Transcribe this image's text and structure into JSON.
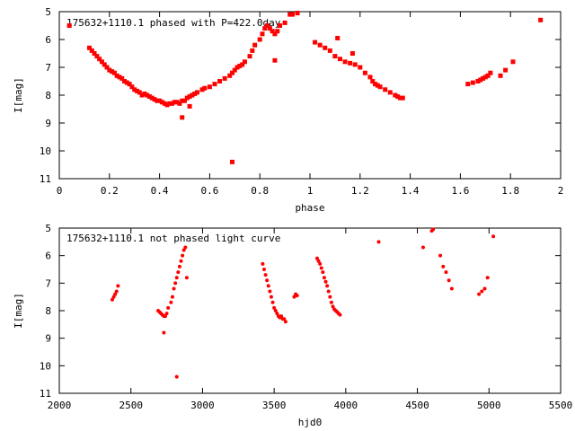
{
  "chart_data": [
    {
      "type": "scatter",
      "title": "175632+1110.1 phased with P=422.0day",
      "xlabel": "phase",
      "ylabel": "I[mag]",
      "xlim": [
        0,
        2
      ],
      "ylim": [
        11,
        5
      ],
      "y_inverted": true,
      "xticks": [
        "0",
        "0.2",
        "0.4",
        "0.6",
        "0.8",
        "1",
        "1.2",
        "1.4",
        "1.6",
        "1.8",
        "2"
      ],
      "yticks": [
        "5",
        "6",
        "7",
        "8",
        "9",
        "10",
        "11"
      ],
      "series": [
        {
          "color": "#ff0000",
          "x": [
            0.04,
            0.12,
            0.13,
            0.14,
            0.15,
            0.16,
            0.17,
            0.18,
            0.19,
            0.2,
            0.21,
            0.22,
            0.23,
            0.24,
            0.25,
            0.26,
            0.27,
            0.28,
            0.29,
            0.3,
            0.31,
            0.32,
            0.33,
            0.34,
            0.35,
            0.36,
            0.37,
            0.38,
            0.39,
            0.4,
            0.41,
            0.42,
            0.43,
            0.44,
            0.45,
            0.46,
            0.47,
            0.48,
            0.49,
            0.5,
            0.51,
            0.52,
            0.53,
            0.54,
            0.55,
            0.57,
            0.58,
            0.6,
            0.62,
            0.64,
            0.66,
            0.68,
            0.69,
            0.7,
            0.71,
            0.72,
            0.73,
            0.74,
            0.76,
            0.77,
            0.78,
            0.8,
            0.81,
            0.82,
            0.83,
            0.84,
            0.85,
            0.86,
            0.87,
            0.88,
            0.9,
            0.92,
            0.93,
            0.95,
            0.49,
            0.52,
            0.69,
            0.86,
            1.02,
            1.04,
            1.06,
            1.08,
            1.1,
            1.12,
            1.14,
            1.16,
            1.18,
            1.11,
            1.17,
            1.2,
            1.22,
            1.24,
            1.25,
            1.26,
            1.27,
            1.28,
            1.3,
            1.32,
            1.34,
            1.35,
            1.36,
            1.37,
            1.63,
            1.65,
            1.67,
            1.68,
            1.69,
            1.7,
            1.71,
            1.72,
            1.76,
            1.78,
            1.81,
            1.92
          ],
          "y": [
            5.5,
            6.3,
            6.4,
            6.5,
            6.6,
            6.7,
            6.8,
            6.9,
            7.0,
            7.1,
            7.15,
            7.2,
            7.3,
            7.35,
            7.4,
            7.5,
            7.55,
            7.6,
            7.7,
            7.8,
            7.85,
            7.9,
            8.0,
            7.95,
            8.0,
            8.05,
            8.1,
            8.15,
            8.2,
            8.2,
            8.25,
            8.3,
            8.35,
            8.3,
            8.3,
            8.25,
            8.25,
            8.3,
            8.2,
            8.2,
            8.1,
            8.05,
            8.0,
            7.95,
            7.9,
            7.8,
            7.75,
            7.7,
            7.6,
            7.5,
            7.4,
            7.3,
            7.2,
            7.1,
            7.0,
            6.95,
            6.9,
            6.8,
            6.6,
            6.4,
            6.2,
            6.0,
            5.8,
            5.6,
            5.5,
            5.6,
            5.7,
            5.8,
            5.7,
            5.5,
            5.4,
            5.1,
            5.1,
            5.05,
            8.8,
            8.4,
            10.4,
            6.75,
            6.1,
            6.2,
            6.3,
            6.4,
            6.6,
            6.7,
            6.8,
            6.85,
            6.9,
            5.95,
            6.5,
            7.0,
            7.2,
            7.35,
            7.5,
            7.6,
            7.65,
            7.7,
            7.8,
            7.9,
            8.0,
            8.05,
            8.1,
            8.1,
            7.6,
            7.55,
            7.5,
            7.45,
            7.4,
            7.35,
            7.3,
            7.2,
            7.3,
            7.1,
            6.8,
            5.3
          ]
        }
      ],
      "grid": false,
      "legend": "none"
    },
    {
      "type": "scatter",
      "title": "175632+1110.1 not phased light curve",
      "xlabel": "hjd0",
      "ylabel": "I[mag]",
      "xlim": [
        2000,
        5500
      ],
      "ylim": [
        11,
        5
      ],
      "y_inverted": true,
      "xticks": [
        "2000",
        "2500",
        "3000",
        "3500",
        "4000",
        "4500",
        "5000",
        "5500"
      ],
      "yticks": [
        "5",
        "6",
        "7",
        "8",
        "9",
        "10",
        "11"
      ],
      "series": [
        {
          "color": "#ff0000",
          "x": [
            2370,
            2380,
            2390,
            2400,
            2410,
            2690,
            2700,
            2710,
            2720,
            2730,
            2740,
            2750,
            2760,
            2780,
            2790,
            2800,
            2810,
            2820,
            2830,
            2840,
            2850,
            2860,
            2870,
            2880,
            2730,
            2820,
            2890,
            3420,
            3430,
            3440,
            3450,
            3460,
            3470,
            3480,
            3490,
            3500,
            3510,
            3520,
            3530,
            3540,
            3550,
            3560,
            3570,
            3580,
            3640,
            3650,
            3660,
            3800,
            3810,
            3820,
            3830,
            3840,
            3850,
            3860,
            3870,
            3880,
            3890,
            3900,
            3910,
            3920,
            3930,
            3940,
            3950,
            3960,
            4230,
            4540,
            4600,
            4610,
            4660,
            4680,
            4700,
            4720,
            4740,
            4930,
            4950,
            4970,
            4990,
            5030
          ],
          "y": [
            7.6,
            7.5,
            7.4,
            7.3,
            7.1,
            8.0,
            8.05,
            8.1,
            8.15,
            8.2,
            8.2,
            8.1,
            7.9,
            7.7,
            7.5,
            7.2,
            7.0,
            6.8,
            6.6,
            6.4,
            6.2,
            6.0,
            5.8,
            5.7,
            8.8,
            10.4,
            6.8,
            6.3,
            6.5,
            6.7,
            6.9,
            7.1,
            7.3,
            7.5,
            7.7,
            7.9,
            8.0,
            8.1,
            8.2,
            8.25,
            8.2,
            8.3,
            8.3,
            8.4,
            7.5,
            7.4,
            7.45,
            6.1,
            6.2,
            6.3,
            6.45,
            6.6,
            6.8,
            6.95,
            7.1,
            7.3,
            7.5,
            7.7,
            7.85,
            7.95,
            8.0,
            8.05,
            8.1,
            8.15,
            5.5,
            5.7,
            5.1,
            5.05,
            6.0,
            6.4,
            6.6,
            6.9,
            7.2,
            7.4,
            7.3,
            7.2,
            6.8,
            5.3
          ]
        }
      ],
      "grid": false,
      "legend": "none"
    }
  ]
}
